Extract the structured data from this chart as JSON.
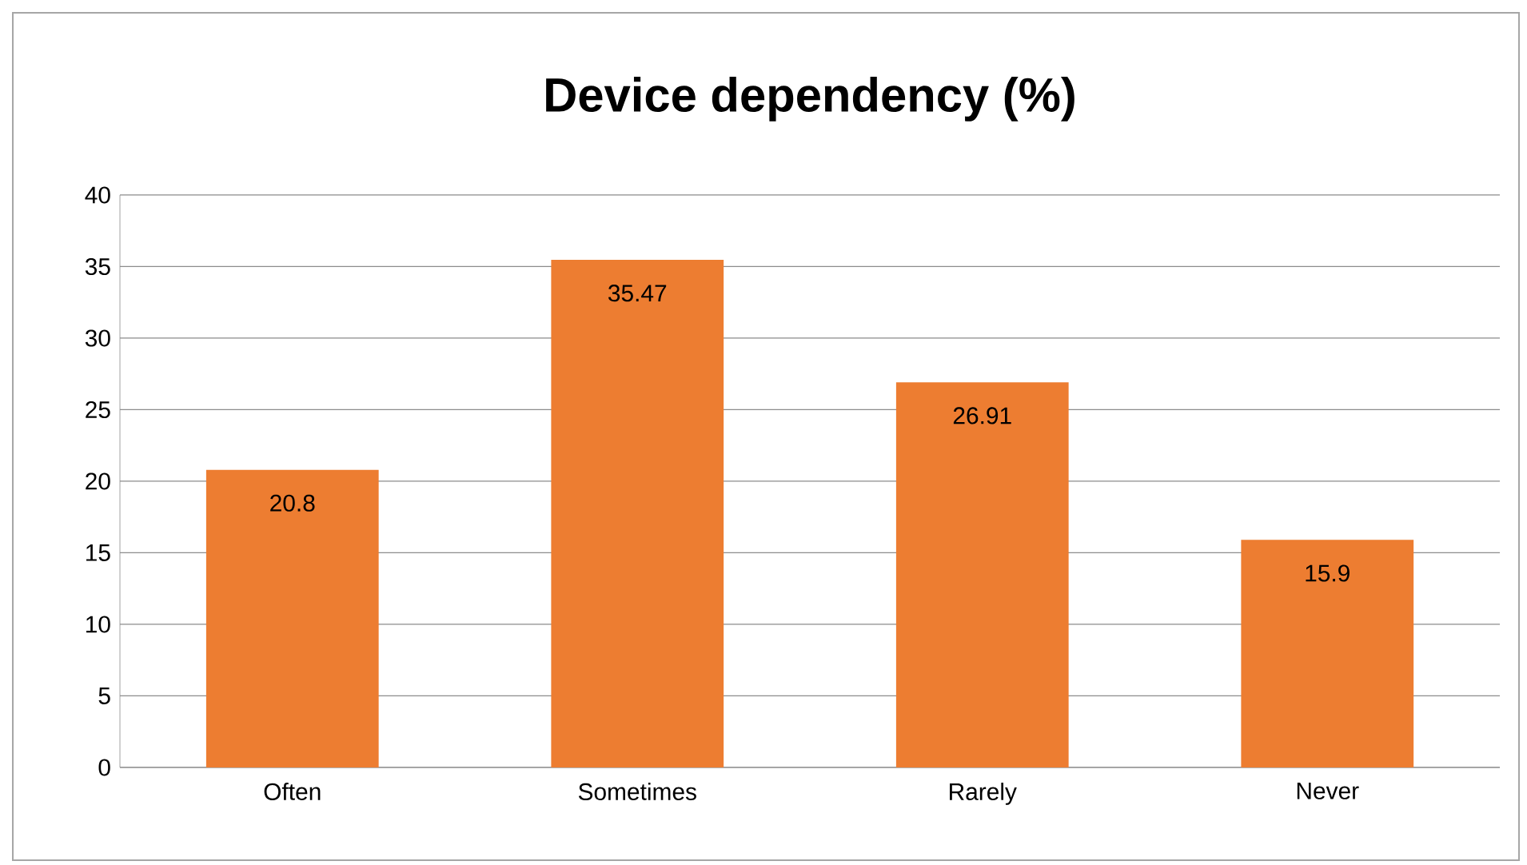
{
  "chart_data": {
    "type": "bar",
    "title": "Device dependency (%)",
    "categories": [
      "Often",
      "Sometimes",
      "Rarely",
      "Never"
    ],
    "values": [
      20.8,
      35.47,
      26.91,
      15.9
    ],
    "color": "#ed7d31",
    "ylim": [
      0,
      40
    ],
    "yticks": [
      0,
      5,
      10,
      15,
      20,
      25,
      30,
      35,
      40
    ],
    "grid": "y",
    "data_labels": true
  }
}
